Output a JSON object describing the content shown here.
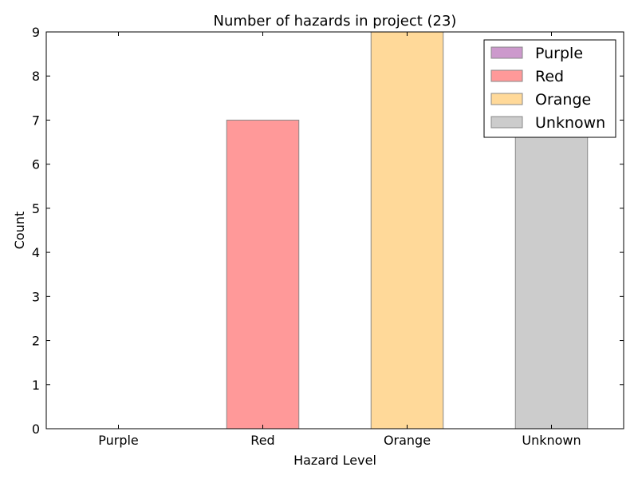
{
  "chart_data": {
    "type": "bar",
    "title": "Number of hazards in project (23)",
    "xlabel": "Hazard Level",
    "ylabel": "Count",
    "categories": [
      "Purple",
      "Red",
      "Orange",
      "Unknown"
    ],
    "values": [
      0,
      7,
      9,
      7
    ],
    "colors": [
      "#cc99cc",
      "#ff9999",
      "#ffd999",
      "#cccccc"
    ],
    "edge_color": "#888888",
    "ylim": [
      0,
      9
    ],
    "yticks": [
      0,
      1,
      2,
      3,
      4,
      5,
      6,
      7,
      8,
      9
    ],
    "grid": false,
    "legend": {
      "placement": "top-right",
      "entries": [
        "Purple",
        "Red",
        "Orange",
        "Unknown"
      ]
    }
  }
}
